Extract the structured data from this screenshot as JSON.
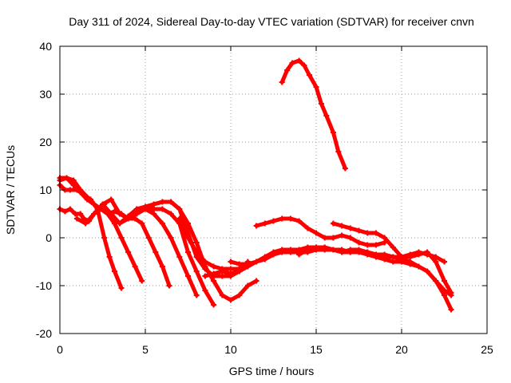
{
  "chart_data": {
    "type": "scatter",
    "title": "Day 311 of 2024, Sidereal Day-to-day VTEC variation (SDTVAR) for receiver cnvn",
    "xlabel": "GPS time / hours",
    "ylabel": "SDTVAR / TECUs",
    "xlim": [
      0,
      25
    ],
    "ylim": [
      -20,
      40
    ],
    "xticks": [
      0,
      5,
      10,
      15,
      20,
      25
    ],
    "yticks": [
      -20,
      -10,
      0,
      10,
      20,
      30,
      40
    ],
    "xtick_labels": [
      "0",
      "5",
      "10",
      "15",
      "20",
      "25"
    ],
    "ytick_labels": [
      "-20",
      "-10",
      "0",
      "10",
      "20",
      "30",
      "40"
    ],
    "grid": true,
    "legend": "none",
    "marker_color": "#ff0000",
    "series": [
      {
        "name": "track-1",
        "x": [
          0.0,
          0.3,
          0.6,
          1.0,
          1.4,
          1.8,
          2.2,
          2.6,
          2.9,
          3.2,
          3.6
        ],
        "y": [
          11,
          10,
          10,
          10,
          9,
          8,
          6,
          0,
          -4,
          -7,
          -10.5
        ]
      },
      {
        "name": "track-2",
        "x": [
          0.0,
          0.4,
          0.8,
          1.2,
          1.6,
          2.0,
          2.4,
          2.8,
          3.2,
          3.6,
          4.0,
          4.4,
          4.8
        ],
        "y": [
          12.5,
          12.5,
          11,
          9.5,
          8,
          7,
          6,
          5,
          3,
          0,
          -3,
          -6,
          -9
        ]
      },
      {
        "name": "track-3",
        "x": [
          0.0,
          0.4,
          0.8,
          1.2,
          1.6,
          2.0,
          2.4,
          2.8,
          3.2,
          3.6,
          4.0,
          4.4,
          4.8,
          5.2,
          5.6,
          6.0,
          6.4
        ],
        "y": [
          12,
          12.5,
          12,
          10,
          8.5,
          7,
          6,
          5,
          5.5,
          5,
          4,
          4,
          3,
          0,
          -3,
          -6,
          -10
        ]
      },
      {
        "name": "track-4",
        "x": [
          0.0,
          0.3,
          0.6,
          0.9,
          1.2,
          1.4,
          1.7,
          2.0,
          2.3,
          2.6
        ],
        "y": [
          6,
          5.5,
          6,
          5,
          5,
          4,
          3.5,
          5,
          6,
          7
        ]
      },
      {
        "name": "track-5",
        "x": [
          1.0,
          1.5,
          2.0,
          2.5,
          3.0,
          3.5,
          4.0,
          4.5,
          5.0,
          5.5,
          6.0,
          6.5,
          7.0,
          7.5,
          8.0
        ],
        "y": [
          4,
          3,
          5,
          7,
          8,
          5,
          4,
          6,
          6,
          5,
          3,
          0,
          -4,
          -8,
          -12
        ]
      },
      {
        "name": "track-6",
        "x": [
          2.5,
          3.0,
          3.5,
          4.0,
          4.5,
          5.0,
          5.5,
          6.0,
          6.5,
          7.0,
          7.5,
          8.0,
          8.5,
          9.0
        ],
        "y": [
          7,
          5,
          3,
          4,
          5,
          6,
          6,
          6,
          5,
          3,
          -3,
          -7,
          -11,
          -14
        ]
      },
      {
        "name": "track-7",
        "x": [
          3.5,
          4.0,
          4.5,
          5.0,
          5.5,
          6.0,
          6.5,
          7.0,
          7.5,
          8.0,
          8.5,
          9.0,
          9.5,
          10.0,
          10.5,
          11.0,
          11.5
        ],
        "y": [
          3,
          4.5,
          6,
          6.5,
          7,
          7.5,
          7.5,
          6,
          3,
          -1,
          -6,
          -9,
          -12,
          -13,
          -12,
          -10,
          -9
        ]
      },
      {
        "name": "track-8",
        "x": [
          5.0,
          5.5,
          6.0,
          6.5,
          7.0,
          7.3,
          7.7,
          8.0,
          8.5,
          9.0,
          9.5,
          10.0,
          10.5,
          11.0
        ],
        "y": [
          6,
          7,
          7.5,
          7.5,
          6,
          3,
          -1,
          -4,
          -6.5,
          -8,
          -8,
          -8,
          -7,
          -5
        ]
      },
      {
        "name": "track-9",
        "x": [
          7.0,
          7.5,
          8.0,
          8.5,
          9.0,
          9.5,
          10.0,
          10.5,
          11.0,
          11.5
        ],
        "y": [
          4,
          0,
          -3,
          -5,
          -6,
          -6.5,
          -6.5,
          -6.5,
          -5.5,
          -5
        ]
      },
      {
        "name": "track-10",
        "x": [
          8.5,
          9.0,
          9.5,
          10.0,
          10.5,
          11.0,
          11.5,
          12.0,
          12.5,
          13.0,
          13.5,
          14.0,
          14.5,
          15.0,
          15.5,
          16.0,
          16.5,
          17.0,
          17.5,
          18.0,
          18.5,
          19.0,
          19.5,
          20.0,
          20.5,
          21.0,
          21.5,
          22.0,
          22.5
        ],
        "y": [
          -8,
          -7.5,
          -7,
          -7.5,
          -7,
          -6,
          -5,
          -4,
          -3,
          -2.5,
          -2.5,
          -2.5,
          -2,
          -2,
          -2,
          -2.5,
          -2.5,
          -3,
          -3,
          -3,
          -3.5,
          -3.5,
          -4,
          -4,
          -3.5,
          -3,
          -3.5,
          -4,
          -5
        ]
      },
      {
        "name": "track-11",
        "x": [
          10.0,
          10.5,
          11.0,
          11.5,
          12.0,
          12.5,
          13.0,
          13.5,
          14.0,
          14.5,
          15.0,
          15.5,
          16.0,
          16.5,
          17.0,
          17.5,
          18.0,
          18.5,
          19.0,
          19.5,
          20.0,
          20.5,
          21.0,
          21.5,
          22.0,
          22.5,
          22.9
        ],
        "y": [
          -5,
          -5.5,
          -5.5,
          -5,
          -4.5,
          -3.5,
          -3,
          -3,
          -3,
          -3,
          -2.5,
          -2.5,
          -2.5,
          -3,
          -3,
          -3,
          -3.5,
          -4,
          -4.5,
          -5,
          -5,
          -5.5,
          -6,
          -7,
          -9,
          -11,
          -12
        ]
      },
      {
        "name": "track-12",
        "x": [
          11.5,
          12.0,
          12.5,
          13.0,
          13.5,
          14.0,
          14.5,
          15.0,
          15.5,
          16.0,
          16.5,
          17.0,
          17.5,
          18.0,
          18.5,
          19.0
        ],
        "y": [
          2.5,
          3,
          3.5,
          4,
          4,
          3.5,
          2,
          1,
          0,
          0,
          0.5,
          0,
          -1,
          -1.5,
          -1.5,
          -1
        ]
      },
      {
        "name": "track-13",
        "x": [
          13.0,
          13.3,
          13.6,
          14.0,
          14.3,
          14.6,
          15.0,
          15.3,
          15.6,
          16.0,
          16.3,
          16.7
        ],
        "y": [
          32.5,
          35,
          36.5,
          37,
          36,
          34,
          31.5,
          28,
          25.5,
          22,
          18,
          14.5
        ]
      },
      {
        "name": "track-14",
        "x": [
          14.0,
          14.5,
          15.0,
          15.5,
          16.0,
          16.5,
          17.0,
          17.5,
          18.0,
          18.5,
          19.0,
          19.5,
          20.0,
          20.5,
          21.0,
          21.5,
          22.0,
          22.5,
          22.9
        ],
        "y": [
          -3.5,
          -2.5,
          -2,
          -2,
          -2.5,
          -3,
          -2.5,
          -2.5,
          -3,
          -3.5,
          -4,
          -4,
          -4.5,
          -5,
          -6,
          -7,
          -9,
          -12,
          -15
        ]
      },
      {
        "name": "track-15",
        "x": [
          16.0,
          16.5,
          17.0,
          17.5,
          18.0,
          18.5,
          19.0,
          19.5,
          20.0,
          20.5,
          21.0,
          21.5,
          22.0,
          22.5,
          22.9
        ],
        "y": [
          3,
          2.5,
          2,
          1.5,
          1,
          1,
          0,
          -2,
          -4,
          -4,
          -3.5,
          -3,
          -5,
          -9,
          -11.5
        ]
      }
    ]
  }
}
